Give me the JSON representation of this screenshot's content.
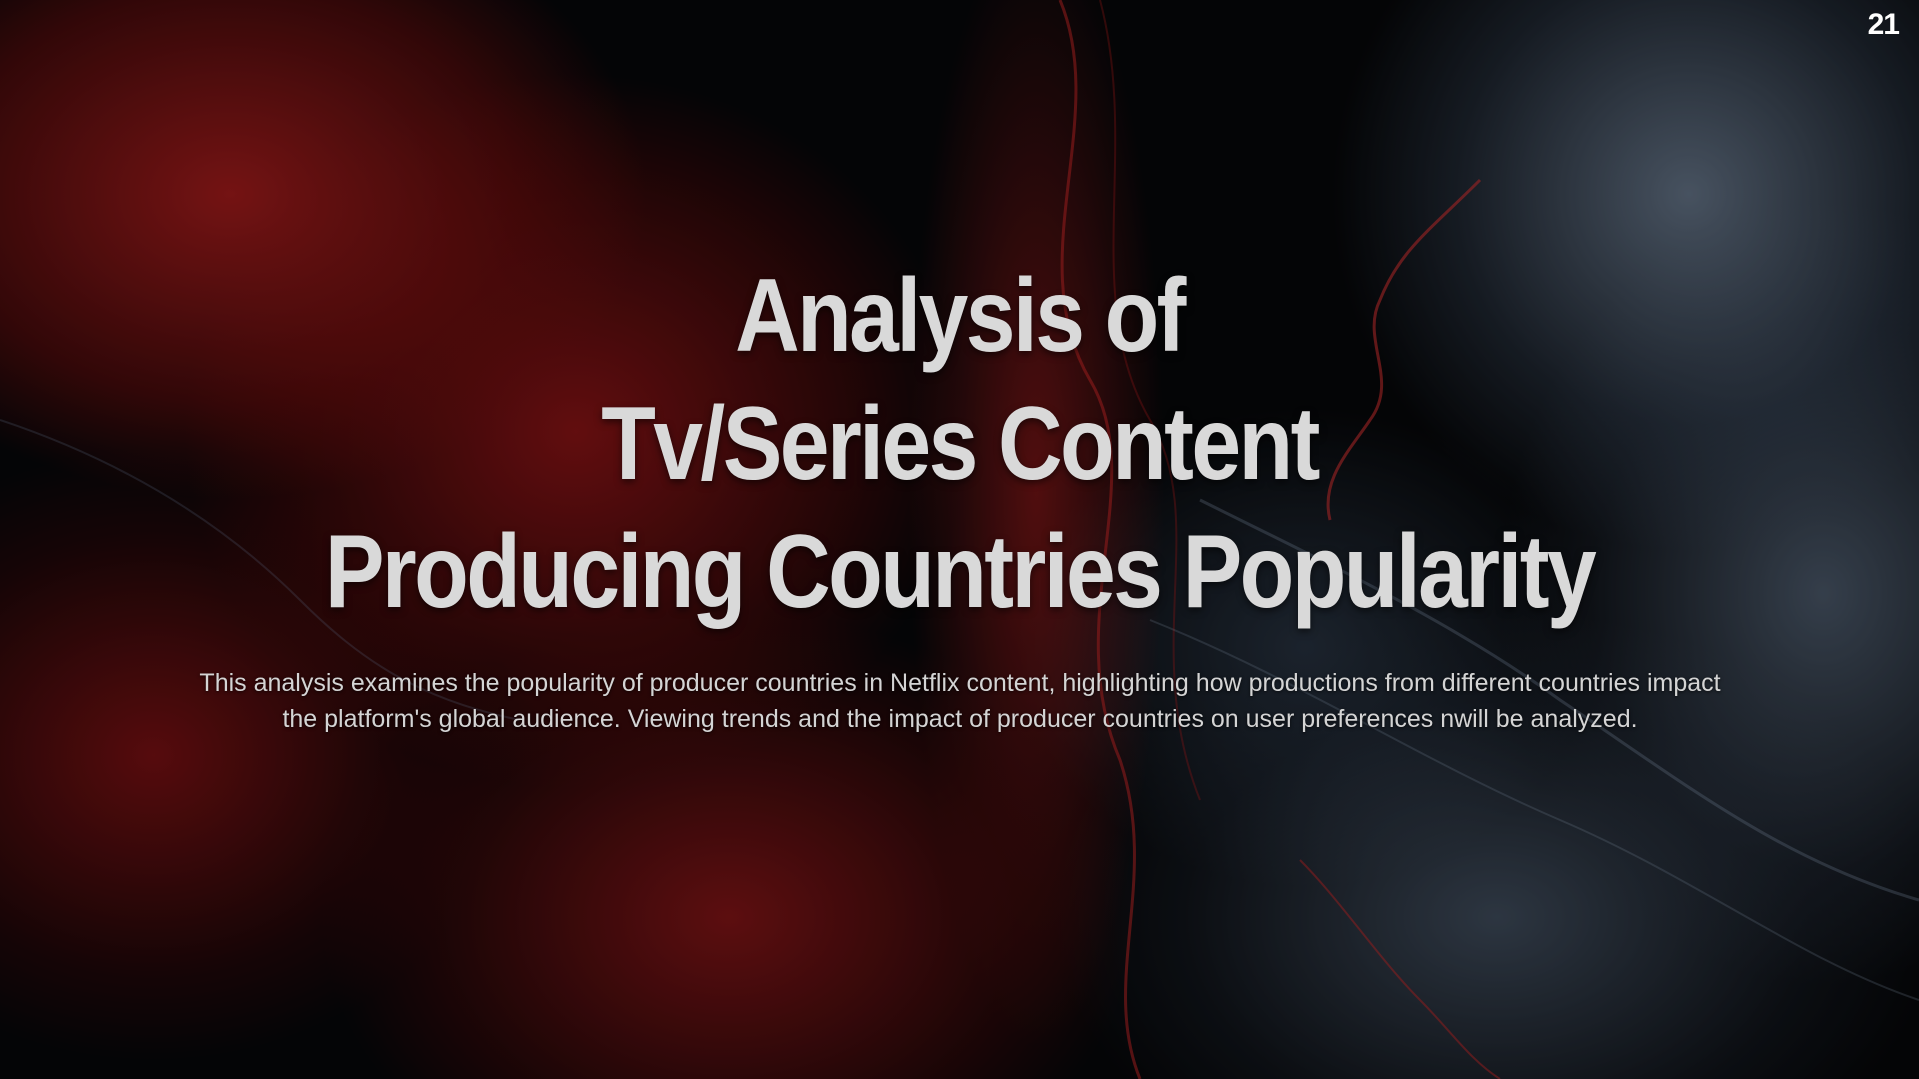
{
  "slide": {
    "page_number": "21",
    "title_lines": [
      "Analysis of",
      "Tv/Series Content",
      "Producing Countries Popularity"
    ],
    "description": "This analysis examines the popularity of producer countries in Netflix content, highlighting how productions from different countries impact the platform's global audience. Viewing trends and the impact of producer countries on user preferences nwill be analyzed."
  },
  "colors": {
    "title": "#d9d9d9",
    "body_text": "#d4d4d4",
    "page_number": "#ffffff",
    "background_red": "#a81c1c",
    "background_blue": "#8296af"
  }
}
